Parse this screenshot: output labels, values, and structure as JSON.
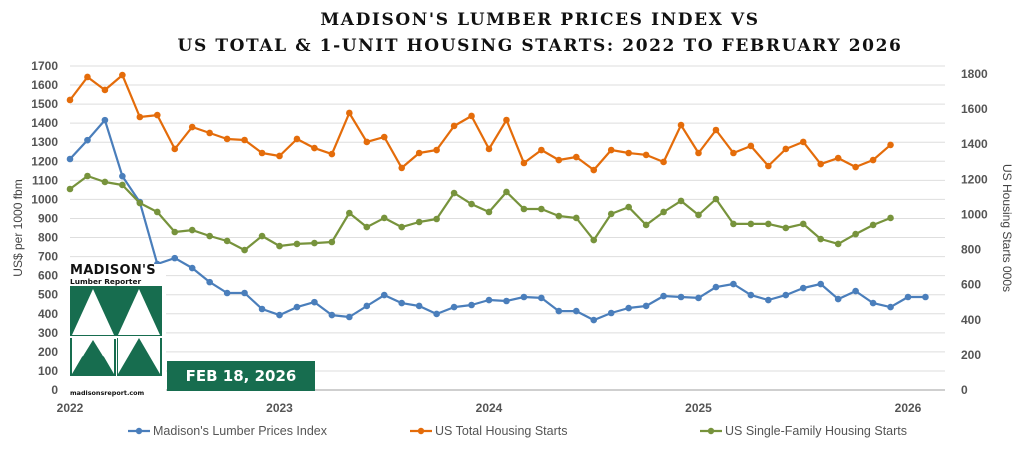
{
  "chart_data": {
    "type": "line",
    "title": [
      "MADISON'S LUMBER PRICES INDEX VS",
      "US TOTAL & 1-UNIT HOUSING STARTS: 2022 TO FEBRUARY 2026"
    ],
    "xlabel": "",
    "ylabel_left": "US$ per 1000 fbm",
    "ylabel_right": "US Housing Starts 000s",
    "ylim_left": [
      0,
      1700
    ],
    "ylim_right": [
      0,
      1800
    ],
    "yticks_left": [
      "0",
      "100",
      "200",
      "300",
      "400",
      "500",
      "600",
      "700",
      "800",
      "900",
      "1000",
      "1100",
      "1200",
      "1300",
      "1400",
      "1500",
      "1600",
      "1700"
    ],
    "yticks_right": [
      "0",
      "200",
      "400",
      "600",
      "800",
      "1000",
      "1200",
      "1400",
      "1600",
      "1800"
    ],
    "xticks": [
      "2022",
      "2023",
      "2024",
      "2025",
      "2026"
    ],
    "x_start": "2022-01",
    "x_unit": "month",
    "grid": true,
    "legend_position": "bottom",
    "series": [
      {
        "name": "Madison's Lumber Prices Index",
        "axis": "left",
        "color": "#4a7ebb",
        "values": [
          1212,
          1311,
          1416,
          1122,
          986,
          661,
          692,
          640,
          566,
          509,
          509,
          425,
          393,
          435,
          461,
          393,
          383,
          441,
          498,
          456,
          441,
          399,
          435,
          446,
          472,
          467,
          488,
          483,
          414,
          414,
          367,
          404,
          430,
          441,
          493,
          488,
          483,
          540,
          556,
          498,
          472,
          498,
          535,
          556,
          477,
          519,
          456,
          435,
          488,
          488
        ]
      },
      {
        "name": "US Total Housing Starts",
        "axis": "right",
        "color": "#e46c0a",
        "values": [
          1652,
          1783,
          1709,
          1794,
          1555,
          1566,
          1373,
          1498,
          1464,
          1430,
          1424,
          1350,
          1333,
          1430,
          1378,
          1344,
          1578,
          1413,
          1441,
          1265,
          1350,
          1367,
          1504,
          1561,
          1373,
          1538,
          1293,
          1367,
          1310,
          1327,
          1253,
          1367,
          1350,
          1339,
          1299,
          1509,
          1350,
          1481,
          1350,
          1390,
          1276,
          1373,
          1413,
          1287,
          1321,
          1270,
          1310,
          1396
        ]
      },
      {
        "name": "US Single-Family Housing Starts",
        "axis": "right",
        "color": "#77933c",
        "values": [
          1145,
          1219,
          1185,
          1168,
          1065,
          1014,
          900,
          911,
          877,
          849,
          797,
          877,
          820,
          832,
          837,
          843,
          1008,
          928,
          980,
          928,
          957,
          974,
          1122,
          1059,
          1014,
          1128,
          1031,
          1031,
          991,
          980,
          854,
          1003,
          1042,
          940,
          1014,
          1077,
          997,
          1088,
          946,
          946,
          946,
          923,
          946,
          860,
          832,
          888,
          940,
          980
        ]
      }
    ]
  },
  "logo": {
    "name": "MADISON'S",
    "subtitle": "Lumber Reporter",
    "url": "madisonsreport.com"
  },
  "date_badge": "FEB 18, 2026",
  "colors": {
    "brand_green": "#176d4f"
  }
}
